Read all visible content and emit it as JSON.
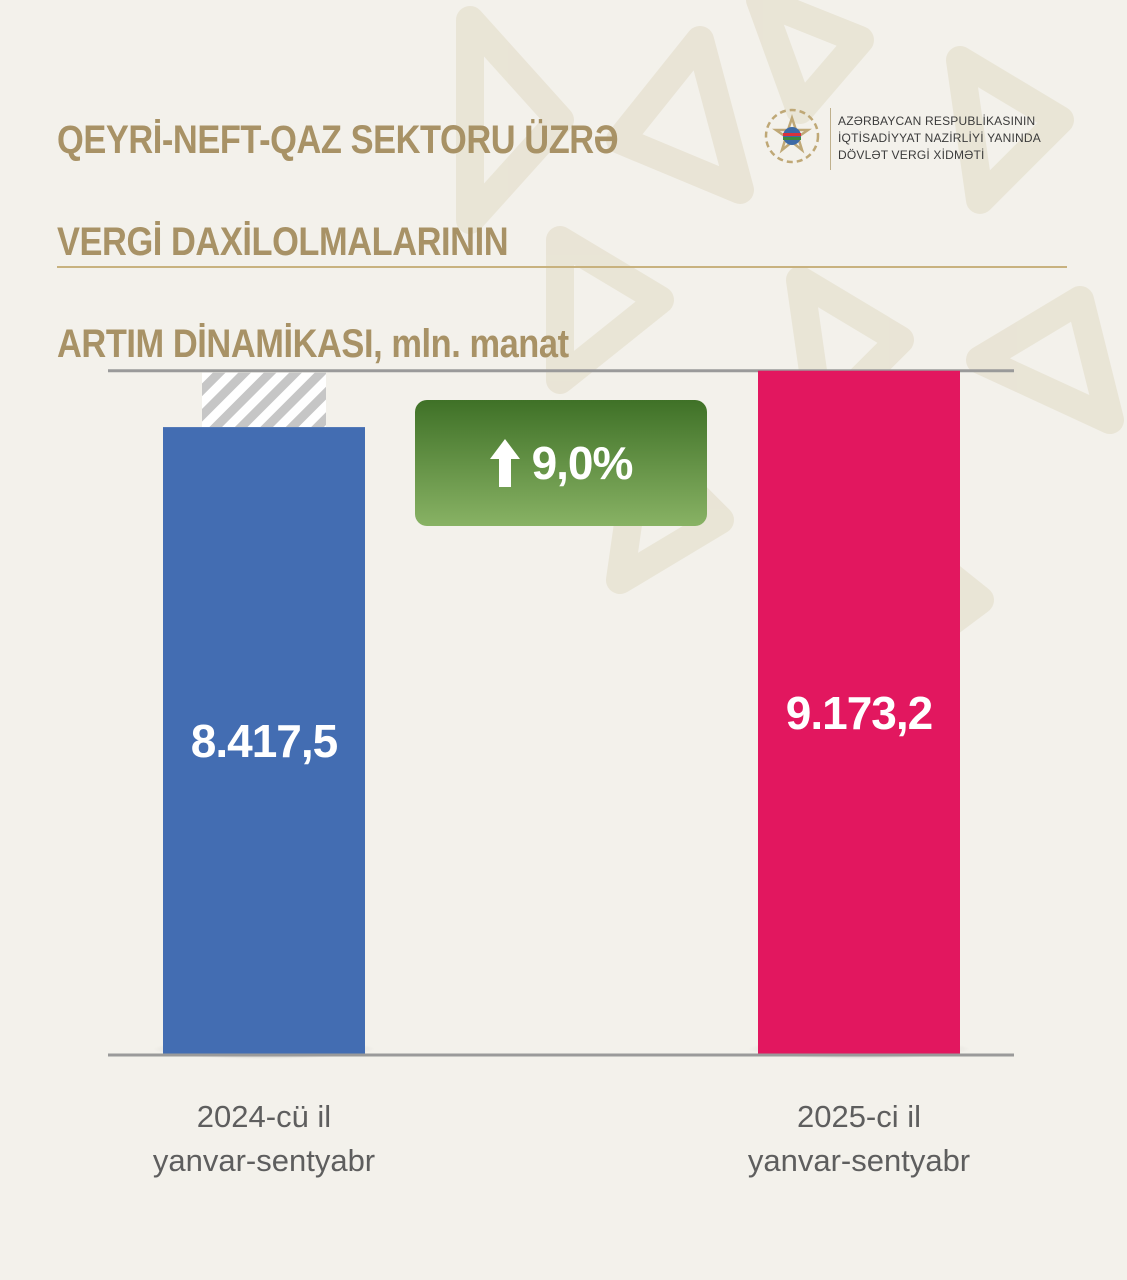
{
  "header": {
    "title_lines": [
      "QEYRİ-NEFT-QAZ SEKTORU ÜZRƏ",
      "VERGİ DAXİLOLMALARININ",
      "ARTIM DİNAMİKASI, mln. manat"
    ]
  },
  "logo": {
    "lines": [
      "AZƏRBAYCAN RESPUBLİKASININ",
      "İQTİSADİYYAT NAZİRLİYİ YANINDA",
      "DÖVLƏT VERGİ XİDMƏTİ"
    ],
    "icon": "state-emblem-icon"
  },
  "colors": {
    "title": "#a89266",
    "bar_2024": "#436db2",
    "bar_2025": "#e2175f",
    "growth_badge_top": "#3f7127",
    "growth_badge_bottom": "#88b264",
    "axis": "#9a9a9a"
  },
  "growth": {
    "label": "9,0%",
    "icon": "arrow-up-icon"
  },
  "chart_data": {
    "type": "bar",
    "title": "QEYRİ-NEFT-QAZ SEKTORU ÜZRƏ VERGİ DAXİLOLMALARININ ARTIM DİNAMİKASI, mln. manat",
    "categories": [
      [
        "2024-cü il",
        "yanvar-sentyabr"
      ],
      [
        "2025-ci il",
        "yanvar-sentyabr"
      ]
    ],
    "values": [
      8417.5,
      9173.2
    ],
    "value_labels": [
      "8.417,5",
      "9.173,2"
    ],
    "ylim": [
      0,
      9250
    ],
    "reference_value": 9173.2,
    "growth_percent": 9.0,
    "grid": false,
    "legend": "none"
  }
}
